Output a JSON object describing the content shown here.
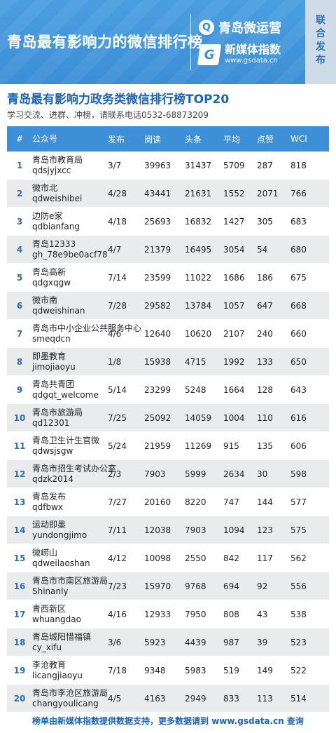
{
  "banner": {
    "title": "青岛最有影响力的微信排行榜",
    "logo1_text": "青岛微运营",
    "logo2_name": "新媒体指数",
    "logo2_url": "www.gsdata.cn",
    "side_chars": [
      "联",
      "合",
      "发",
      "布"
    ]
  },
  "heading": "青岛最有影响力政务类微信排行榜TOP20",
  "subheading": "学习交流、进群、冲榜，请联系电话0532-68873209",
  "table": {
    "headers": [
      "#",
      "公众号",
      "发布",
      "阅读",
      "头条",
      "平均",
      "点赞",
      "WCI"
    ],
    "rows": [
      {
        "rank": "1",
        "name": "青岛市教育局",
        "id": "qdsjyjxcc",
        "date": "3/7",
        "read": "39963",
        "head": "31437",
        "avg": "5709",
        "like": "287",
        "wci": "818"
      },
      {
        "rank": "2",
        "name": "微市北",
        "id": "qdweishibei",
        "date": "4/28",
        "read": "43441",
        "head": "21631",
        "avg": "1552",
        "like": "2071",
        "wci": "766"
      },
      {
        "rank": "3",
        "name": "边防e家",
        "id": "qdbianfang",
        "date": "4/18",
        "read": "25693",
        "head": "16832",
        "avg": "1427",
        "like": "305",
        "wci": "683"
      },
      {
        "rank": "4",
        "name": "青岛12333",
        "id": "gh_78e9be0acf78",
        "date": "4/7",
        "read": "21379",
        "head": "16495",
        "avg": "3054",
        "like": "54",
        "wci": "680"
      },
      {
        "rank": "5",
        "name": "青岛高新",
        "id": "qdgxqgw",
        "date": "7/14",
        "read": "23599",
        "head": "11022",
        "avg": "1686",
        "like": "186",
        "wci": "675"
      },
      {
        "rank": "6",
        "name": "微市南",
        "id": "qdweishinan",
        "date": "7/28",
        "read": "29582",
        "head": "13784",
        "avg": "1057",
        "like": "647",
        "wci": "668"
      },
      {
        "rank": "7",
        "name": "青岛市中小企业公共服务中心",
        "id": "smeqdcn",
        "date": "4/6",
        "read": "12640",
        "head": "10620",
        "avg": "2107",
        "like": "240",
        "wci": "660"
      },
      {
        "rank": "8",
        "name": "即墨教育",
        "id": "jimojiaoyu",
        "date": "1/8",
        "read": "15938",
        "head": "4715",
        "avg": "1992",
        "like": "133",
        "wci": "650"
      },
      {
        "rank": "9",
        "name": "青岛共青团",
        "id": "qdgqt_welcome",
        "date": "5/14",
        "read": "23299",
        "head": "5248",
        "avg": "1664",
        "like": "128",
        "wci": "643"
      },
      {
        "rank": "10",
        "name": "青岛市旅游局",
        "id": "qd12301",
        "date": "7/25",
        "read": "25092",
        "head": "14059",
        "avg": "1004",
        "like": "110",
        "wci": "616"
      },
      {
        "rank": "11",
        "name": "青岛卫生计生官微",
        "id": "qdwsjsgw",
        "date": "5/24",
        "read": "21959",
        "head": "11269",
        "avg": "915",
        "like": "135",
        "wci": "606"
      },
      {
        "rank": "12",
        "name": "青岛市招生考试办公室",
        "id": "qdzk2014",
        "date": "2/3",
        "read": "7903",
        "head": "5999",
        "avg": "2634",
        "like": "30",
        "wci": "598"
      },
      {
        "rank": "13",
        "name": "青岛发布",
        "id": "qdfbwx",
        "date": "7/27",
        "read": "20160",
        "head": "8220",
        "avg": "747",
        "like": "144",
        "wci": "577"
      },
      {
        "rank": "14",
        "name": "运动即墨",
        "id": "yundongjimo",
        "date": "7/11",
        "read": "12038",
        "head": "7903",
        "avg": "1094",
        "like": "123",
        "wci": "575"
      },
      {
        "rank": "15",
        "name": "微崂山",
        "id": "qdweilaoshan",
        "date": "4/12",
        "read": "10098",
        "head": "2550",
        "avg": "842",
        "like": "117",
        "wci": "562"
      },
      {
        "rank": "16",
        "name": "青岛市市南区旅游局",
        "id": "Shinanly",
        "date": "7/23",
        "read": "15970",
        "head": "9768",
        "avg": "694",
        "like": "92",
        "wci": "556"
      },
      {
        "rank": "17",
        "name": "青西新区",
        "id": "whuangdao",
        "date": "4/16",
        "read": "12933",
        "head": "7950",
        "avg": "808",
        "like": "43",
        "wci": "538"
      },
      {
        "rank": "18",
        "name": "青岛城阳惜福镇",
        "id": "cy_xifu",
        "date": "3/6",
        "read": "5923",
        "head": "4439",
        "avg": "987",
        "like": "39",
        "wci": "523"
      },
      {
        "rank": "19",
        "name": "李沧教育",
        "id": "licangjiaoyu",
        "date": "7/18",
        "read": "9348",
        "head": "5983",
        "avg": "519",
        "like": "149",
        "wci": "522"
      },
      {
        "rank": "20",
        "name": "青岛市李沧区旅游局",
        "id": "changyoulicang",
        "date": "4/5",
        "read": "4163",
        "head": "2949",
        "avg": "833",
        "like": "113",
        "wci": "514"
      }
    ]
  },
  "footer": "榜单由新媒体指数提供数据支持，更多数据请到 www.gsdata.cn 查询"
}
